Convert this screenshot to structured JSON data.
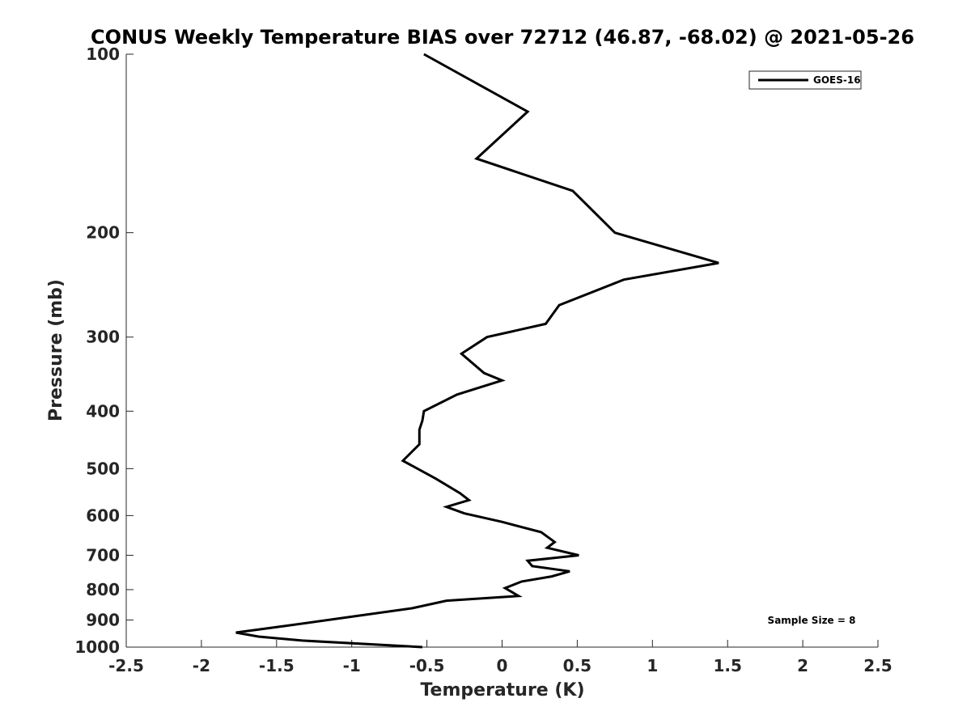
{
  "chart_data": {
    "type": "line",
    "title": "CONUS Weekly Temperature BIAS over 72712 (46.87, -68.02) @ 2021-05-26",
    "xlabel": "Temperature (K)",
    "ylabel": "Pressure (mb)",
    "xlim": [
      -2.5,
      2.5
    ],
    "ylim": [
      100,
      1000
    ],
    "y_scale": "log",
    "y_reversed": true,
    "x_ticks": [
      -2.5,
      -2,
      -1.5,
      -1,
      -0.5,
      0,
      0.5,
      1,
      1.5,
      2,
      2.5
    ],
    "x_tick_labels": [
      "-2.5",
      "-2",
      "-1.5",
      "-1",
      "-0.5",
      "0",
      "0.5",
      "1",
      "1.5",
      "2",
      "2.5"
    ],
    "y_ticks": [
      100,
      200,
      300,
      400,
      500,
      600,
      700,
      800,
      900,
      1000
    ],
    "y_tick_labels": [
      "100",
      "200",
      "300",
      "400",
      "500",
      "600",
      "700",
      "800",
      "900",
      "1000"
    ],
    "grid": false,
    "legend_position": "top-right",
    "series": [
      {
        "name": "GOES-16",
        "color": "#000000",
        "x": [
          -0.52,
          0.17,
          -0.17,
          0.47,
          0.75,
          1.44,
          0.81,
          0.38,
          0.29,
          -0.1,
          -0.27,
          -0.12,
          0.0,
          -0.3,
          -0.52,
          -0.53,
          -0.55,
          -0.55,
          -0.66,
          -0.44,
          -0.28,
          -0.22,
          -0.37,
          -0.25,
          0.0,
          0.26,
          0.35,
          0.3,
          0.51,
          0.17,
          0.2,
          0.45,
          0.33,
          0.13,
          0.02,
          0.11,
          -0.37,
          -0.6,
          -1.43,
          -1.77,
          -1.62,
          -1.33,
          -0.53
        ],
        "y": [
          100,
          125,
          150,
          170,
          200,
          225,
          240,
          265,
          285,
          300,
          320,
          345,
          355,
          375,
          400,
          415,
          430,
          455,
          485,
          520,
          550,
          565,
          580,
          595,
          615,
          640,
          665,
          680,
          700,
          715,
          730,
          745,
          760,
          775,
          795,
          820,
          835,
          860,
          920,
          945,
          960,
          975,
          1000
        ]
      }
    ],
    "annotations": [
      "Sample Size = 8"
    ]
  }
}
